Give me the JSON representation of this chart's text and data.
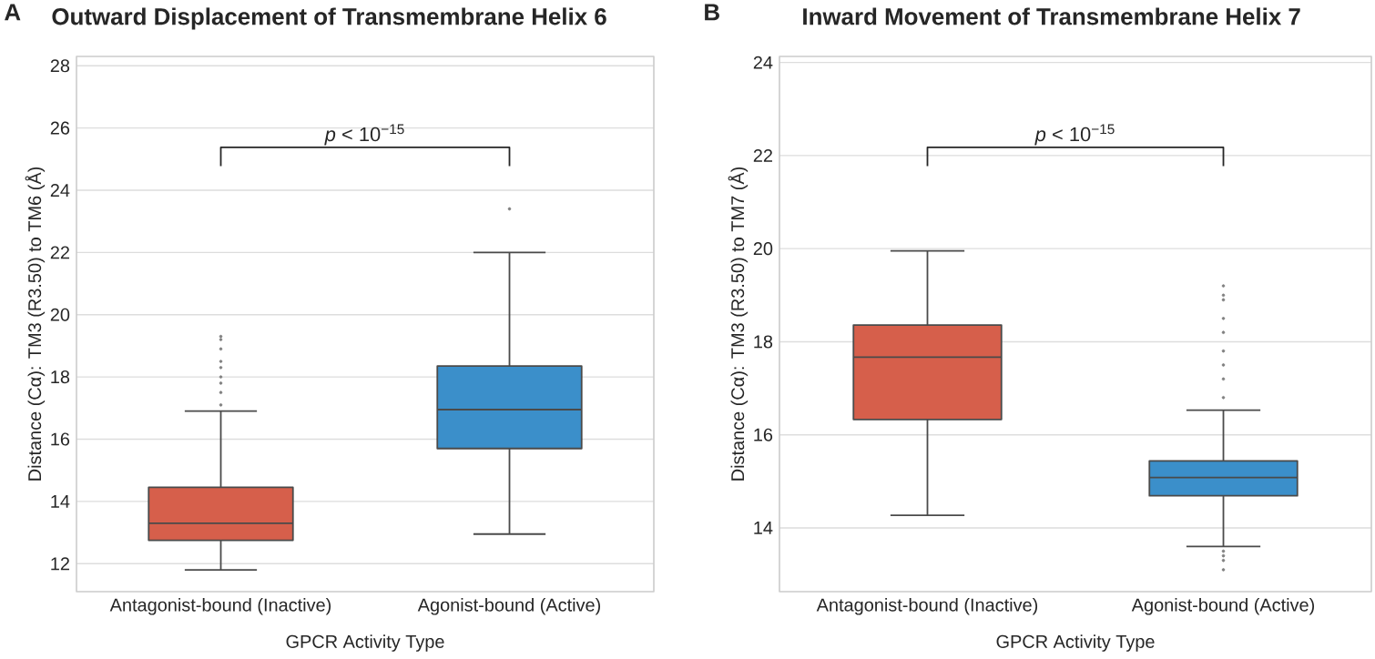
{
  "chart_data": [
    {
      "type": "box",
      "title": "Outward Displacement of Transmembrane Helix 6",
      "xlabel": "GPCR Activity Type",
      "ylabel": "Distance (Cα): TM3 (R3.50) to TM6 (Å)",
      "categories": [
        "Antagonist-bound (Inactive)",
        "Agonist-bound (Active)"
      ],
      "colors": [
        "#d65f4b",
        "#3b8fca"
      ],
      "boxes": [
        {
          "low": 11.8,
          "q1": 12.75,
          "median": 13.3,
          "q3": 14.45,
          "high": 16.9,
          "outliers": [
            17.1,
            17.5,
            17.8,
            18.0,
            18.3,
            18.5,
            18.9,
            19.2,
            19.3
          ]
        },
        {
          "low": 12.95,
          "q1": 15.7,
          "median": 16.95,
          "q3": 18.35,
          "high": 22.0,
          "outliers": [
            23.4
          ]
        }
      ],
      "ylim": [
        11.1,
        28.3
      ],
      "yticks": [
        12,
        14,
        16,
        18,
        20,
        22,
        24,
        26,
        28
      ],
      "grid": "y",
      "annotations": [
        "A",
        "*p* < 10$^{−15}$"
      ]
    },
    {
      "type": "box",
      "title": "Inward Movement of Transmembrane Helix 7",
      "xlabel": "GPCR Activity Type",
      "ylabel": "Distance (Cα): TM3 (R3.50) to TM7 (Å)",
      "categories": [
        "Antagonist-bound (Inactive)",
        "Agonist-bound (Active)"
      ],
      "colors": [
        "#d65f4b",
        "#3b8fca"
      ],
      "boxes": [
        {
          "low": 14.27,
          "q1": 16.33,
          "median": 17.67,
          "q3": 18.36,
          "high": 19.95
        },
        {
          "low": 13.6,
          "q1": 14.69,
          "median": 15.08,
          "q3": 15.44,
          "high": 16.53,
          "outliers": [
            13.1,
            13.3,
            13.4,
            13.5,
            16.8,
            17.2,
            17.5,
            17.8,
            18.2,
            18.5,
            18.9,
            19.0,
            19.2
          ]
        }
      ],
      "ylim": [
        12.63,
        24.13
      ],
      "yticks": [
        14,
        16,
        18,
        20,
        22,
        24
      ],
      "grid": "y",
      "annotations": [
        "B",
        "*p* < 10$^{−15}$"
      ]
    }
  ]
}
